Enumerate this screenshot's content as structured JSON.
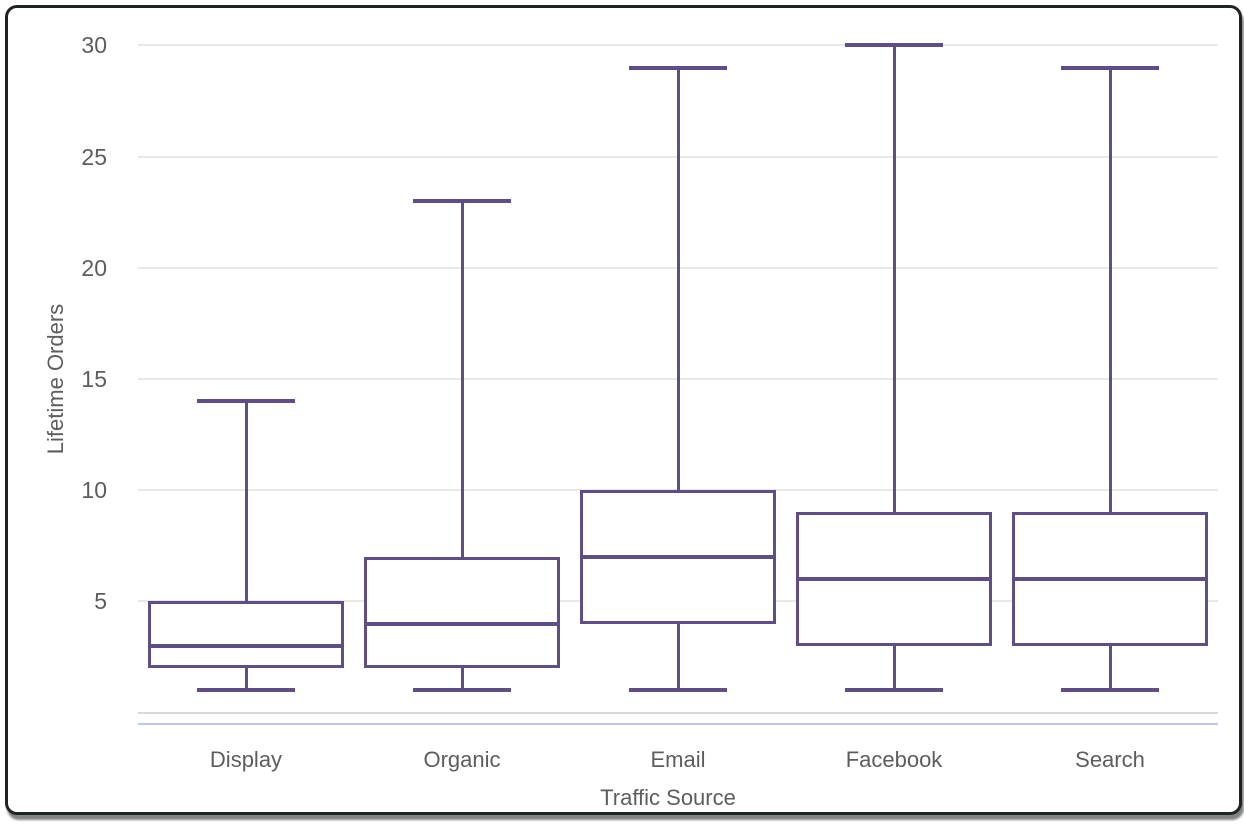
{
  "chart_data": {
    "type": "boxplot",
    "title": "",
    "xlabel": "Traffic Source",
    "ylabel": "Lifetime Orders",
    "categories": [
      "Display",
      "Organic",
      "Email",
      "Facebook",
      "Search"
    ],
    "series": [
      {
        "name": "Display",
        "min": 1,
        "q1": 2,
        "median": 3,
        "q3": 5,
        "max": 14
      },
      {
        "name": "Organic",
        "min": 1,
        "q1": 2,
        "median": 4,
        "q3": 7,
        "max": 23
      },
      {
        "name": "Email",
        "min": 1,
        "q1": 4,
        "median": 7,
        "q3": 10,
        "max": 29
      },
      {
        "name": "Facebook",
        "min": 1,
        "q1": 3,
        "median": 6,
        "q3": 9,
        "max": 30
      },
      {
        "name": "Search",
        "min": 1,
        "q1": 3,
        "median": 6,
        "q3": 9,
        "max": 29
      }
    ],
    "yticks": [
      5,
      10,
      15,
      20,
      25,
      30
    ],
    "ylim": [
      0,
      30
    ],
    "grid": true,
    "legend": "none",
    "colors": {
      "box_stroke": "#5e4d87",
      "median": "#5e4d87",
      "gridline": "#e8e8e8",
      "axis_line": "#d9d9d9",
      "axis_accent_line": "#bdc9e6",
      "text": "#5d5d5d",
      "background": "#ffffff",
      "frame_border": "#1f2321"
    }
  }
}
